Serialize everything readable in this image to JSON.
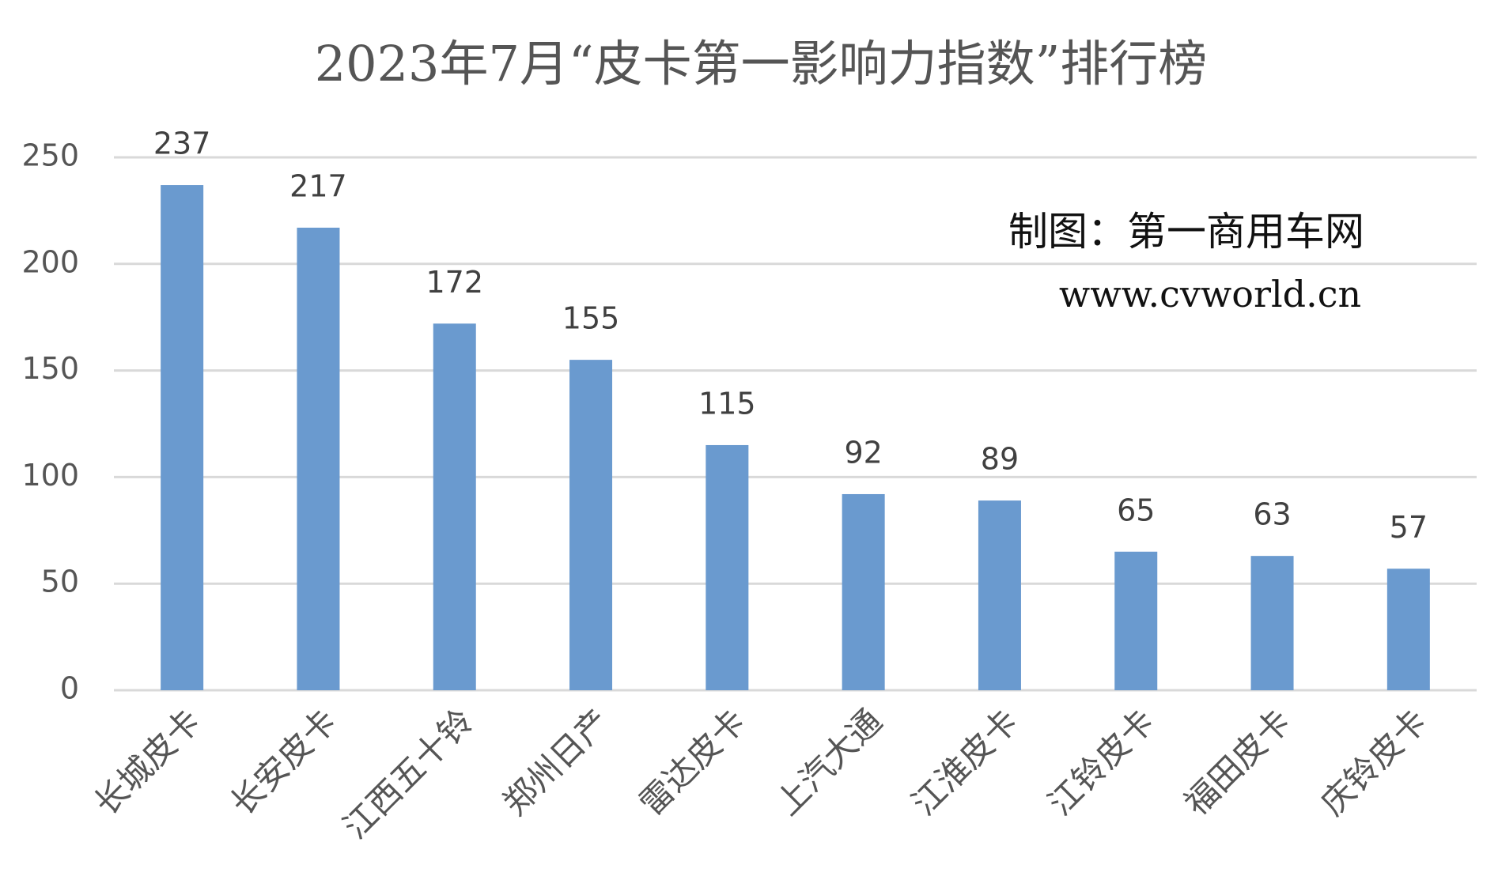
{
  "chart_data": {
    "type": "bar",
    "title": "2023年7月“皮卡第一影响力指数”排行榜",
    "annotations": [
      "制图：第一商用车网",
      "www.cvworld.cn"
    ],
    "categories": [
      "长城皮卡",
      "长安皮卡",
      "江西五十铃",
      "郑州日产",
      "雷达皮卡",
      "上汽大通",
      "江淮皮卡",
      "江铃皮卡",
      "福田皮卡",
      "庆铃皮卡"
    ],
    "values": [
      237,
      217,
      172,
      155,
      115,
      92,
      89,
      65,
      63,
      57
    ],
    "color": "#6a9acf",
    "ylim": [
      0,
      250
    ],
    "yticks": [
      0,
      50,
      100,
      150,
      200,
      250
    ],
    "grid": true
  }
}
